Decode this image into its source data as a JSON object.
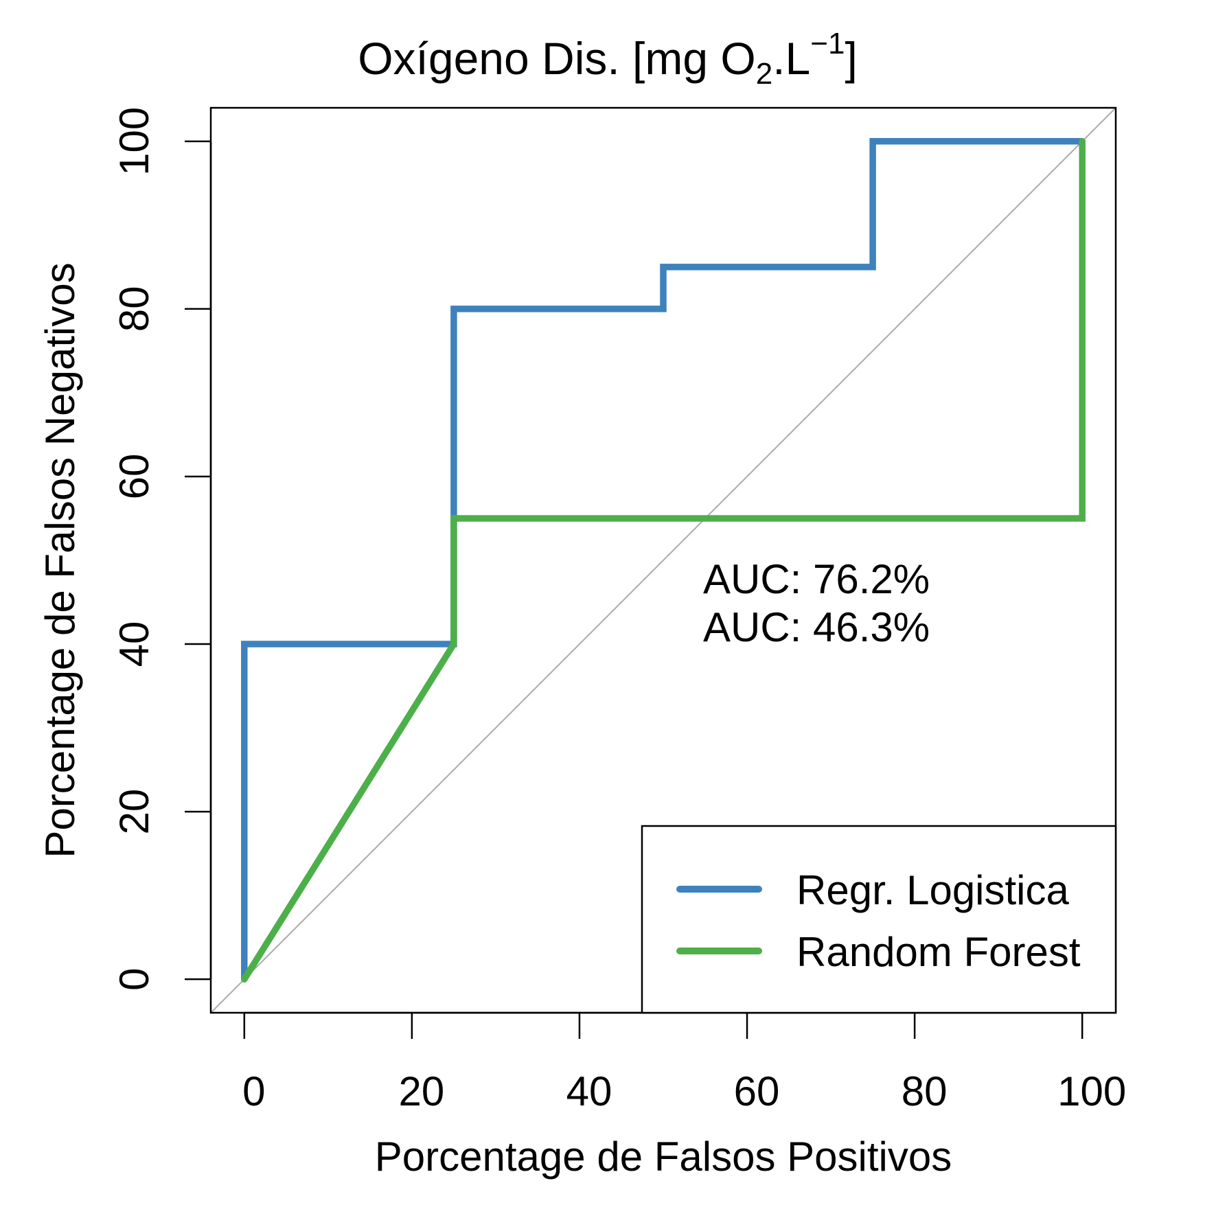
{
  "chart_data": {
    "type": "line",
    "title": {
      "main": "Oxígeno Dis. [mg O",
      "sub": "2",
      "mid": ".L",
      "sup": "−1",
      "end": "]"
    },
    "xlabel": "Porcentage de Falsos Positivos",
    "ylabel": "Porcentage de Falsos Negativos",
    "xlim": [
      -4,
      104
    ],
    "ylim": [
      -4,
      104
    ],
    "x_ticks": [
      0,
      20,
      40,
      60,
      80,
      100
    ],
    "x_tick_labels": [
      "0",
      "20",
      "40",
      "60",
      "80",
      "100"
    ],
    "y_ticks": [
      0,
      20,
      40,
      60,
      80,
      100
    ],
    "y_tick_labels": [
      "0",
      "20",
      "40",
      "60",
      "80",
      "100"
    ],
    "grid": false,
    "reference_line": {
      "from": [
        0,
        0
      ],
      "to": [
        100,
        100
      ],
      "color": "#aaaaaa"
    },
    "series": [
      {
        "name": "Regr. Logistica",
        "color": "#3e82bd",
        "x": [
          0,
          0,
          25,
          25,
          50,
          50,
          75,
          75,
          100
        ],
        "y": [
          0,
          40,
          40,
          80,
          80,
          85,
          85,
          100,
          100
        ]
      },
      {
        "name": "Random Forest",
        "color": "#4daf4a",
        "x": [
          0,
          25,
          25,
          100,
          100
        ],
        "y": [
          0,
          40,
          55,
          55,
          100
        ]
      }
    ],
    "annotations": [
      {
        "text": "AUC: 76.2%",
        "color": "#3e82bd"
      },
      {
        "text": "AUC: 46.3%",
        "color": "#4daf4a"
      }
    ],
    "legend": {
      "position": "bottom-right"
    }
  }
}
